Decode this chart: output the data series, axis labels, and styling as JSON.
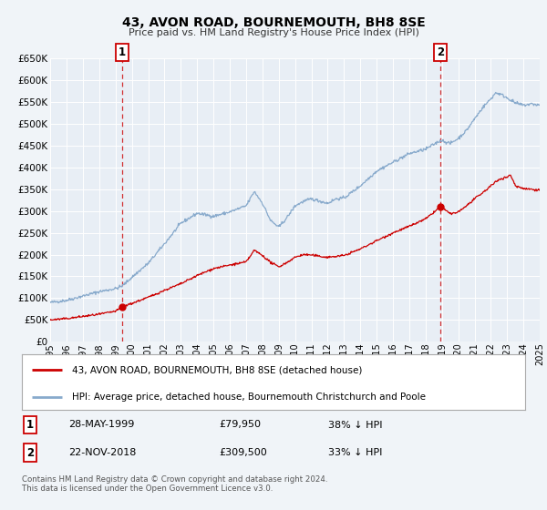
{
  "title": "43, AVON ROAD, BOURNEMOUTH, BH8 8SE",
  "subtitle": "Price paid vs. HM Land Registry's House Price Index (HPI)",
  "bg_color": "#f0f4f8",
  "plot_bg_color": "#e8eef5",
  "grid_color": "#ffffff",
  "red_color": "#cc0000",
  "blue_color": "#88aacc",
  "ylim": [
    0,
    650000
  ],
  "yticks": [
    0,
    50000,
    100000,
    150000,
    200000,
    250000,
    300000,
    350000,
    400000,
    450000,
    500000,
    550000,
    600000,
    650000
  ],
  "sale1_date": 1999.41,
  "sale1_price": 79950,
  "sale2_date": 2018.9,
  "sale2_price": 309500,
  "legend_line1": "43, AVON ROAD, BOURNEMOUTH, BH8 8SE (detached house)",
  "legend_line2": "HPI: Average price, detached house, Bournemouth Christchurch and Poole",
  "table_row1": [
    "1",
    "28-MAY-1999",
    "£79,950",
    "38% ↓ HPI"
  ],
  "table_row2": [
    "2",
    "22-NOV-2018",
    "£309,500",
    "33% ↓ HPI"
  ],
  "footer1": "Contains HM Land Registry data © Crown copyright and database right 2024.",
  "footer2": "This data is licensed under the Open Government Licence v3.0."
}
